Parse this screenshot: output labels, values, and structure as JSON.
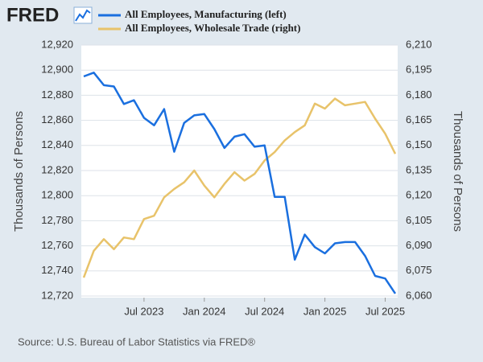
{
  "chart_data": {
    "type": "line",
    "logo": "FRED",
    "source": "Source: U.S. Bureau of Labor Statistics via FRED®",
    "ylabel": "Thousands of Persons",
    "y2label": "Thousands of Persons",
    "x": [
      "2023-01",
      "2023-02",
      "2023-03",
      "2023-04",
      "2023-05",
      "2023-06",
      "2023-07",
      "2023-08",
      "2023-09",
      "2023-10",
      "2023-11",
      "2023-12",
      "2024-01",
      "2024-02",
      "2024-03",
      "2024-04",
      "2024-05",
      "2024-06",
      "2024-07",
      "2024-08",
      "2024-09",
      "2024-10",
      "2024-11",
      "2024-12",
      "2025-01",
      "2025-02",
      "2025-03",
      "2025-04",
      "2025-05",
      "2025-06",
      "2025-07",
      "2025-08"
    ],
    "xlim": [
      "2023-01",
      "2025-08"
    ],
    "xticks": [
      {
        "value": "2023-07",
        "label": "Jul 2023"
      },
      {
        "value": "2024-01",
        "label": "Jan 2024"
      },
      {
        "value": "2024-07",
        "label": "Jul 2024"
      },
      {
        "value": "2025-01",
        "label": "Jan 2025"
      },
      {
        "value": "2025-07",
        "label": "Jul 2025"
      }
    ],
    "ylim": [
      12720,
      12920
    ],
    "yticks": [
      {
        "value": 12720,
        "label": "12,720"
      },
      {
        "value": 12740,
        "label": "12,740"
      },
      {
        "value": 12760,
        "label": "12,760"
      },
      {
        "value": 12780,
        "label": "12,780"
      },
      {
        "value": 12800,
        "label": "12,800"
      },
      {
        "value": 12820,
        "label": "12,820"
      },
      {
        "value": 12840,
        "label": "12,840"
      },
      {
        "value": 12860,
        "label": "12,860"
      },
      {
        "value": 12880,
        "label": "12,880"
      },
      {
        "value": 12900,
        "label": "12,900"
      },
      {
        "value": 12920,
        "label": "12,920"
      }
    ],
    "y2lim": [
      6060,
      6210
    ],
    "y2ticks": [
      {
        "value": 6060,
        "label": "6,060"
      },
      {
        "value": 6075,
        "label": "6,075"
      },
      {
        "value": 6090,
        "label": "6,090"
      },
      {
        "value": 6105,
        "label": "6,105"
      },
      {
        "value": 6120,
        "label": "6,120"
      },
      {
        "value": 6135,
        "label": "6,135"
      },
      {
        "value": 6150,
        "label": "6,150"
      },
      {
        "value": 6165,
        "label": "6,165"
      },
      {
        "value": 6180,
        "label": "6,180"
      },
      {
        "value": 6195,
        "label": "6,195"
      },
      {
        "value": 6210,
        "label": "6,210"
      }
    ],
    "grid": true,
    "series": [
      {
        "name": "All Employees, Manufacturing (left)",
        "color": "#1a6fdf",
        "values": [
          12895,
          12898,
          12888,
          12887,
          12873,
          12876,
          12862,
          12856,
          12869,
          12835,
          12858,
          12864,
          12865,
          12853,
          12838,
          12847,
          12849,
          12839,
          12840,
          12799,
          12799,
          12749,
          12769,
          12759,
          12754,
          12762,
          12763,
          12763,
          12752,
          12736,
          12734,
          12722
        ]
      },
      {
        "name": "All Employees, Wholesale Trade (right)",
        "color": "#e8c36a",
        "axis": "y2",
        "values": [
          6071,
          6087,
          6094,
          6088,
          6095,
          6094,
          6106,
          6108,
          6119,
          6124,
          6128,
          6135,
          6126,
          6119,
          6127,
          6134,
          6129,
          6133,
          6141,
          6146,
          6153,
          6158,
          6162,
          6175,
          6172,
          6178,
          6174,
          6175,
          6176,
          6166,
          6157,
          6145
        ]
      }
    ]
  }
}
